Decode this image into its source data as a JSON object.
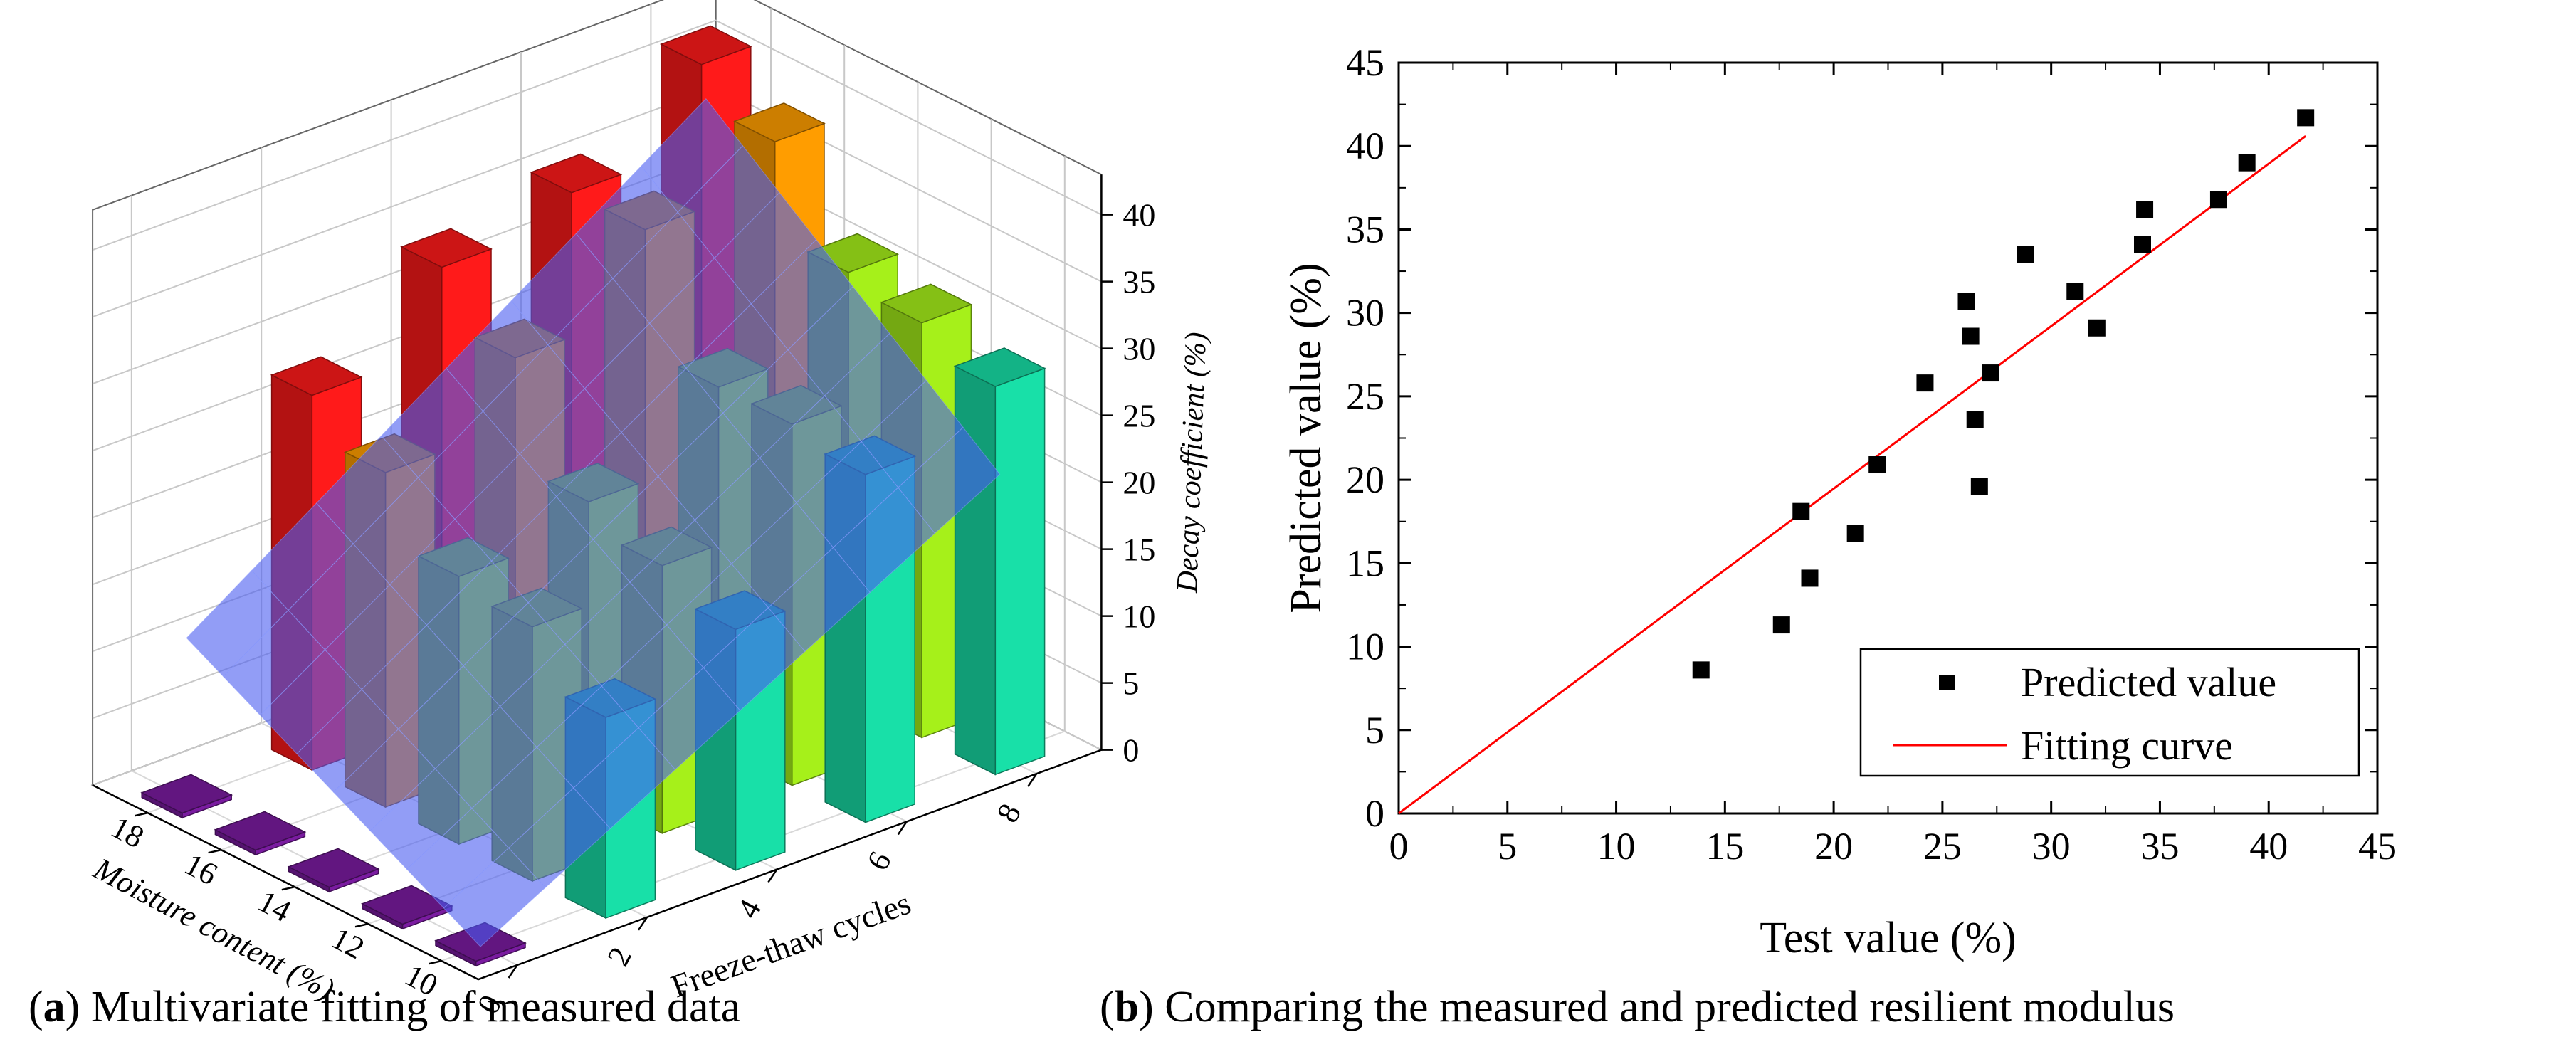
{
  "captions": {
    "a_letter": "a",
    "a_text": "Multivariate fitting of measured data",
    "b_letter": "b",
    "b_text": "Comparing the measured and predicted resilient modulus"
  },
  "chart_data": [
    {
      "id": "a",
      "type": "bar3d",
      "title": "",
      "xlabel": "Freeze-thaw cycles",
      "ylabel": "Moisture content (%)",
      "zlabel": "Decay coefficient (%)",
      "x_ticks": [
        "0",
        "2",
        "4",
        "6",
        "8"
      ],
      "y_ticks": [
        "10",
        "12",
        "14",
        "16",
        "18"
      ],
      "z_ticks": [
        "0",
        "5",
        "10",
        "15",
        "20",
        "25",
        "30",
        "35",
        "40"
      ],
      "zlim": [
        0,
        45
      ],
      "moisture": [
        10,
        12,
        14,
        16,
        18
      ],
      "cycles": [
        0,
        2,
        4,
        6,
        8
      ],
      "decay": [
        [
          0,
          15,
          18,
          26,
          29
        ],
        [
          0,
          19,
          20,
          27,
          31
        ],
        [
          0,
          20,
          22,
          27,
          32
        ],
        [
          0,
          25,
          30,
          36,
          39
        ],
        [
          0,
          28,
          34,
          36,
          42
        ]
      ],
      "surface": {
        "corners": [
          0,
          21,
          12,
          38
        ]
      },
      "bar_colors": {
        "w10": "#18e0a8",
        "w12": "#a6f01a",
        "w14": "#a6f01a",
        "w16": "#ff9d00",
        "w18": "#ff1a1a",
        "zero": "#7a1ba0",
        "surface": "#4a5cf0"
      }
    },
    {
      "id": "b",
      "type": "scatter",
      "title": "",
      "xlabel": "Test value (%)",
      "ylabel": "Predicted value (%)",
      "xlim": [
        0,
        45
      ],
      "ylim": [
        0,
        45
      ],
      "x_ticks": [
        "0",
        "5",
        "10",
        "15",
        "20",
        "25",
        "30",
        "35",
        "40",
        "45"
      ],
      "y_ticks": [
        "0",
        "5",
        "10",
        "15",
        "20",
        "25",
        "30",
        "35",
        "40",
        "45"
      ],
      "points": [
        [
          13.9,
          8.6
        ],
        [
          17.6,
          11.3
        ],
        [
          18.5,
          18.1
        ],
        [
          18.9,
          14.1
        ],
        [
          21.0,
          16.8
        ],
        [
          22.0,
          20.9
        ],
        [
          24.2,
          25.8
        ],
        [
          26.1,
          30.7
        ],
        [
          26.3,
          28.6
        ],
        [
          26.5,
          23.6
        ],
        [
          26.7,
          19.6
        ],
        [
          27.2,
          26.4
        ],
        [
          28.8,
          33.5
        ],
        [
          31.1,
          31.3
        ],
        [
          32.1,
          29.1
        ],
        [
          34.2,
          34.1
        ],
        [
          34.3,
          36.2
        ],
        [
          37.7,
          36.8
        ],
        [
          39.0,
          39.0
        ],
        [
          41.7,
          41.7
        ]
      ],
      "fit_line": {
        "x": [
          0,
          41.7
        ],
        "y": [
          0,
          40.6
        ]
      },
      "legend": {
        "position": "bottom-right",
        "entries": [
          "Predicted value",
          "Fitting curve"
        ]
      },
      "colors": {
        "points": "#000000",
        "fit": "#ff0000"
      }
    }
  ]
}
